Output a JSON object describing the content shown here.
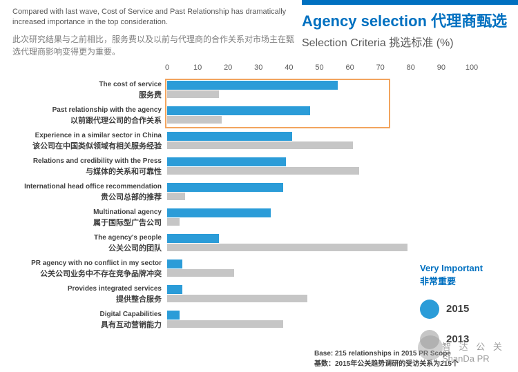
{
  "header": {
    "title_en": "Agency selection",
    "title_zh": "代理商甄选",
    "subtitle": "Selection Criteria 挑选标准 (%)"
  },
  "intro": {
    "en": "Compared with last wave, Cost of Service and Past Relationship has dramatically increased importance in the top consideration.",
    "zh": "此次研究结果与之前相比，服务费以及以前与代理商的合作关系对市场主在甄选代理商影响变得更为重要。"
  },
  "legend": {
    "label_en": "Very Important",
    "label_zh": "非常重要",
    "items": [
      {
        "name": "2015",
        "color": "#2b9cd8"
      },
      {
        "name": "2013",
        "color": "#c6c6c6"
      }
    ]
  },
  "base_note": {
    "en": "Base: 215 relationships in 2015 PR Scope",
    "zh": "基数：2015年公关趋势调研的受访关系为215个"
  },
  "watermark": {
    "line1": "智 达 公 关",
    "line2": "ShanDa PR"
  },
  "chart_data": {
    "type": "bar",
    "orientation": "horizontal",
    "title": "Agency selection 代理商甄选 — Selection Criteria 挑选标准 (%)",
    "xlim": [
      0,
      100
    ],
    "ticks": [
      0,
      10,
      20,
      30,
      40,
      50,
      60,
      70,
      80,
      90,
      100
    ],
    "grid": false,
    "legend_position": "right",
    "categories": [
      {
        "en": "The cost of service",
        "zh": "服务费"
      },
      {
        "en": "Past relationship with the agency",
        "zh": "以前跟代理公司的合作关系"
      },
      {
        "en": "Experience in a similar sector in China",
        "zh": "该公司在中国类似领域有相关服务经验"
      },
      {
        "en": "Relations and credibility with the Press",
        "zh": "与媒体的关系和可靠性"
      },
      {
        "en": "International head office recommendation",
        "zh": "贵公司总部的推荐"
      },
      {
        "en": "Multinational agency",
        "zh": "属于国际型广告公司"
      },
      {
        "en": "The agency's people",
        "zh": "公关公司的团队"
      },
      {
        "en": "PR agency with no conflict in my sector",
        "zh": "公关公司业务中不存在竞争品牌冲突"
      },
      {
        "en": "Provides integrated services",
        "zh": "提供整合服务"
      },
      {
        "en": "Digital Capabilities",
        "zh": "具有互动营销能力"
      }
    ],
    "series": [
      {
        "name": "2015",
        "color": "#2b9cd8",
        "values": [
          56,
          47,
          41,
          39,
          38,
          34,
          17,
          5,
          5,
          4
        ]
      },
      {
        "name": "2013",
        "color": "#c6c6c6",
        "values": [
          17,
          18,
          61,
          63,
          6,
          4,
          79,
          22,
          46,
          38
        ]
      }
    ],
    "highlight": {
      "rows": [
        0,
        1
      ],
      "color": "#f2a45e"
    }
  }
}
